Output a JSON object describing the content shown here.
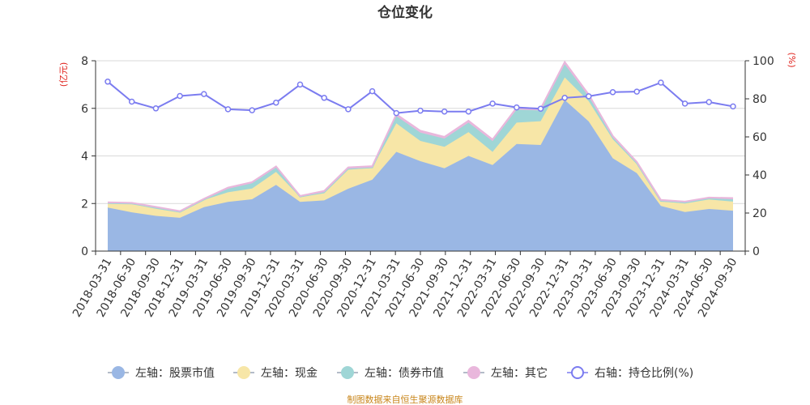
{
  "chart_data": {
    "type": "area",
    "title": "仓位变化",
    "left_axis_unit": "(亿元)",
    "right_axis_unit": "(%)",
    "left_ylim": [
      0,
      8
    ],
    "left_yticks": [
      "0",
      "2",
      "4",
      "6",
      "8"
    ],
    "right_ylim": [
      0,
      100
    ],
    "right_yticks": [
      "0",
      "20",
      "40",
      "60",
      "80",
      "100"
    ],
    "grid": true,
    "legend_position": "bottom",
    "categories": [
      "2018-03-31",
      "2018-06-30",
      "2018-09-30",
      "2018-12-31",
      "2019-03-31",
      "2019-06-30",
      "2019-09-30",
      "2019-12-31",
      "2020-03-31",
      "2020-06-30",
      "2020-09-30",
      "2020-12-31",
      "2021-03-31",
      "2021-06-30",
      "2021-09-30",
      "2021-12-31",
      "2022-03-31",
      "2022-06-30",
      "2022-09-30",
      "2022-12-31",
      "2023-03-31",
      "2023-06-30",
      "2023-09-30",
      "2023-12-31",
      "2024-03-31",
      "2024-06-30",
      "2024-09-30"
    ],
    "series": [
      {
        "name": "左轴：股票市值",
        "axis": "left",
        "kind": "stacked-area",
        "color": "#9ab7e4",
        "values": [
          1.83,
          1.63,
          1.48,
          1.4,
          1.85,
          2.07,
          2.18,
          2.78,
          2.07,
          2.13,
          2.62,
          3.0,
          4.17,
          3.78,
          3.48,
          4.0,
          3.62,
          4.5,
          4.46,
          6.35,
          5.45,
          3.9,
          3.28,
          1.9,
          1.64,
          1.77,
          1.7
        ]
      },
      {
        "name": "左轴：现金",
        "axis": "left",
        "kind": "stacked-area",
        "color": "#f7e6a7",
        "values": [
          0.17,
          0.35,
          0.3,
          0.22,
          0.3,
          0.4,
          0.45,
          0.55,
          0.2,
          0.3,
          0.8,
          0.5,
          1.2,
          0.85,
          0.9,
          1.0,
          0.55,
          0.9,
          1.0,
          0.95,
          0.85,
          0.8,
          0.37,
          0.19,
          0.36,
          0.4,
          0.38
        ]
      },
      {
        "name": "左轴：债券市值",
        "axis": "left",
        "kind": "stacked-area",
        "color": "#9fd6d6",
        "values": [
          0.02,
          0.02,
          0.05,
          0.03,
          0.02,
          0.15,
          0.22,
          0.18,
          0.02,
          0.05,
          0.05,
          0.02,
          0.3,
          0.35,
          0.35,
          0.4,
          0.45,
          0.55,
          0.45,
          0.55,
          0.2,
          0.08,
          0.05,
          0.02,
          0.05,
          0.05,
          0.1
        ]
      },
      {
        "name": "左轴：其它",
        "axis": "left",
        "kind": "stacked-area",
        "color": "#e9b7dc",
        "values": [
          0.03,
          0.03,
          0.03,
          0.03,
          0.03,
          0.05,
          0.05,
          0.05,
          0.03,
          0.05,
          0.05,
          0.05,
          0.08,
          0.08,
          0.07,
          0.08,
          0.07,
          0.08,
          0.08,
          0.1,
          0.08,
          0.06,
          0.05,
          0.04,
          0.03,
          0.03,
          0.05
        ]
      },
      {
        "name": "右轴：持仓比例(%)",
        "axis": "right",
        "kind": "line",
        "color": "#7b7cf0",
        "values": [
          89,
          78.5,
          75,
          81.5,
          82.5,
          74.5,
          74,
          78,
          87.5,
          80.5,
          74.5,
          84,
          72.5,
          73.8,
          73.3,
          73.3,
          77.5,
          75.5,
          74.8,
          80.5,
          81.3,
          83.5,
          83.8,
          88.5,
          77.5,
          78.3,
          76
        ]
      }
    ]
  },
  "source_text": "制图数据来自恒生聚源数据库"
}
